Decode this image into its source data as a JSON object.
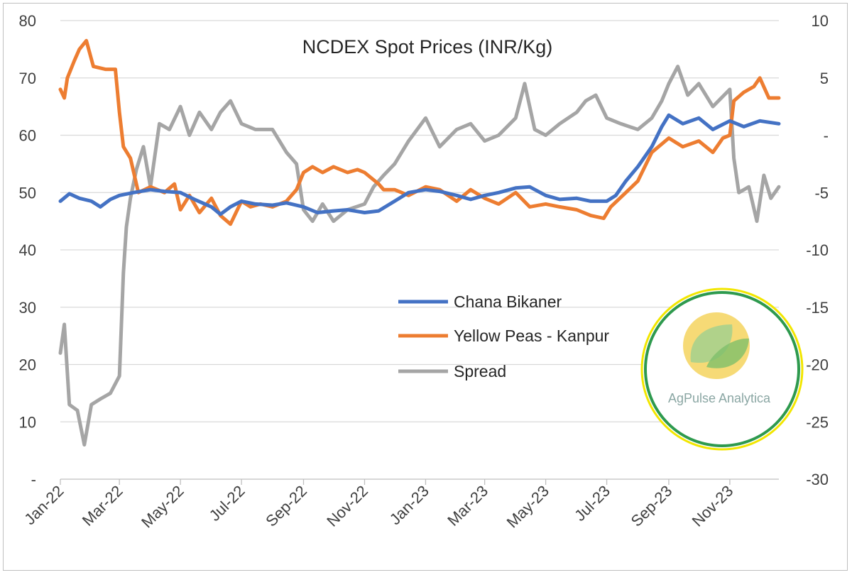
{
  "chart_data": {
    "type": "line",
    "title": "NCDEX Spot Prices (INR/Kg)",
    "xlabel": "",
    "ylabel": "",
    "x_ticks": [
      "Jan-22",
      "Mar-22",
      "May-22",
      "Jul-22",
      "Sep-22",
      "Nov-22",
      "Jan-23",
      "Mar-23",
      "May-23",
      "Jul-23",
      "Sep-23",
      "Nov-23"
    ],
    "x_range": [
      "2022-01-01",
      "2023-12-20"
    ],
    "ylim_left": [
      0,
      80
    ],
    "y_ticks_left": [
      "-",
      "10",
      "20",
      "30",
      "40",
      "50",
      "60",
      "70",
      "80"
    ],
    "ylim_right": [
      -30,
      10
    ],
    "y_ticks_right": [
      "-30",
      "-25",
      "-20",
      "-15",
      "-10",
      "-5",
      "-",
      "5",
      "10"
    ],
    "grid": true,
    "legend_position": "center-right",
    "series": [
      {
        "name": "Chana Bikaner",
        "axis": "left",
        "color": "#4472C4",
        "points": [
          [
            "2022-01-01",
            48.5
          ],
          [
            "2022-01-10",
            49.8
          ],
          [
            "2022-01-20",
            49.0
          ],
          [
            "2022-02-01",
            48.5
          ],
          [
            "2022-02-10",
            47.5
          ],
          [
            "2022-02-20",
            48.8
          ],
          [
            "2022-03-01",
            49.5
          ],
          [
            "2022-03-15",
            50.0
          ],
          [
            "2022-04-01",
            50.5
          ],
          [
            "2022-04-15",
            50.2
          ],
          [
            "2022-05-01",
            50.0
          ],
          [
            "2022-05-15",
            48.8
          ],
          [
            "2022-06-01",
            47.5
          ],
          [
            "2022-06-10",
            46.2
          ],
          [
            "2022-06-20",
            47.5
          ],
          [
            "2022-07-01",
            48.5
          ],
          [
            "2022-07-15",
            48.0
          ],
          [
            "2022-08-01",
            47.8
          ],
          [
            "2022-08-15",
            48.2
          ],
          [
            "2022-09-01",
            47.5
          ],
          [
            "2022-09-15",
            46.5
          ],
          [
            "2022-10-01",
            46.8
          ],
          [
            "2022-10-15",
            47.0
          ],
          [
            "2022-11-01",
            46.5
          ],
          [
            "2022-11-15",
            46.8
          ],
          [
            "2022-12-01",
            48.5
          ],
          [
            "2022-12-15",
            50.0
          ],
          [
            "2023-01-01",
            50.5
          ],
          [
            "2023-01-15",
            50.2
          ],
          [
            "2023-02-01",
            49.5
          ],
          [
            "2023-02-15",
            48.8
          ],
          [
            "2023-03-01",
            49.5
          ],
          [
            "2023-03-15",
            50.0
          ],
          [
            "2023-04-01",
            50.8
          ],
          [
            "2023-04-15",
            51.0
          ],
          [
            "2023-05-01",
            49.5
          ],
          [
            "2023-05-15",
            48.8
          ],
          [
            "2023-06-01",
            49.0
          ],
          [
            "2023-06-15",
            48.5
          ],
          [
            "2023-07-01",
            48.5
          ],
          [
            "2023-07-10",
            49.5
          ],
          [
            "2023-07-20",
            52.0
          ],
          [
            "2023-08-01",
            54.5
          ],
          [
            "2023-08-15",
            58.0
          ],
          [
            "2023-08-25",
            61.5
          ],
          [
            "2023-09-01",
            63.5
          ],
          [
            "2023-09-15",
            62.0
          ],
          [
            "2023-10-01",
            63.0
          ],
          [
            "2023-10-15",
            61.0
          ],
          [
            "2023-11-01",
            62.5
          ],
          [
            "2023-11-15",
            61.5
          ],
          [
            "2023-12-01",
            62.5
          ],
          [
            "2023-12-20",
            62.0
          ]
        ]
      },
      {
        "name": "Yellow Peas - Kanpur",
        "axis": "left",
        "color": "#ED7D31",
        "points": [
          [
            "2022-01-01",
            68.0
          ],
          [
            "2022-01-05",
            66.5
          ],
          [
            "2022-01-08",
            70.0
          ],
          [
            "2022-01-15",
            73.0
          ],
          [
            "2022-01-20",
            75.0
          ],
          [
            "2022-01-27",
            76.5
          ],
          [
            "2022-02-03",
            72.0
          ],
          [
            "2022-02-15",
            71.5
          ],
          [
            "2022-02-25",
            71.5
          ],
          [
            "2022-03-01",
            64.0
          ],
          [
            "2022-03-05",
            58.0
          ],
          [
            "2022-03-12",
            56.0
          ],
          [
            "2022-03-20",
            50.0
          ],
          [
            "2022-04-01",
            51.0
          ],
          [
            "2022-04-15",
            50.0
          ],
          [
            "2022-04-25",
            51.5
          ],
          [
            "2022-05-01",
            47.0
          ],
          [
            "2022-05-10",
            49.5
          ],
          [
            "2022-05-20",
            46.5
          ],
          [
            "2022-06-01",
            49.0
          ],
          [
            "2022-06-10",
            46.0
          ],
          [
            "2022-06-20",
            44.5
          ],
          [
            "2022-07-01",
            48.5
          ],
          [
            "2022-07-10",
            47.5
          ],
          [
            "2022-07-20",
            48.0
          ],
          [
            "2022-08-01",
            47.5
          ],
          [
            "2022-08-15",
            48.5
          ],
          [
            "2022-08-25",
            50.5
          ],
          [
            "2022-09-01",
            53.5
          ],
          [
            "2022-09-10",
            54.5
          ],
          [
            "2022-09-20",
            53.5
          ],
          [
            "2022-10-01",
            54.5
          ],
          [
            "2022-10-15",
            53.5
          ],
          [
            "2022-10-25",
            54.0
          ],
          [
            "2022-11-01",
            53.5
          ],
          [
            "2022-11-15",
            51.5
          ],
          [
            "2022-11-20",
            50.5
          ],
          [
            "2022-12-01",
            50.5
          ],
          [
            "2022-12-15",
            49.5
          ],
          [
            "2023-01-01",
            51.0
          ],
          [
            "2023-01-15",
            50.5
          ],
          [
            "2023-02-01",
            48.5
          ],
          [
            "2023-02-15",
            50.5
          ],
          [
            "2023-03-01",
            49.0
          ],
          [
            "2023-03-15",
            48.0
          ],
          [
            "2023-04-01",
            50.0
          ],
          [
            "2023-04-15",
            47.5
          ],
          [
            "2023-05-01",
            48.0
          ],
          [
            "2023-05-15",
            47.5
          ],
          [
            "2023-06-01",
            47.0
          ],
          [
            "2023-06-15",
            46.0
          ],
          [
            "2023-06-28",
            45.5
          ],
          [
            "2023-07-05",
            47.5
          ],
          [
            "2023-07-20",
            50.0
          ],
          [
            "2023-08-01",
            52.0
          ],
          [
            "2023-08-15",
            57.0
          ],
          [
            "2023-09-01",
            59.5
          ],
          [
            "2023-09-15",
            58.0
          ],
          [
            "2023-10-01",
            59.0
          ],
          [
            "2023-10-15",
            57.0
          ],
          [
            "2023-10-25",
            59.5
          ],
          [
            "2023-11-01",
            60.0
          ],
          [
            "2023-11-05",
            66.0
          ],
          [
            "2023-11-15",
            67.5
          ],
          [
            "2023-11-25",
            68.5
          ],
          [
            "2023-12-01",
            70.0
          ],
          [
            "2023-12-10",
            66.5
          ],
          [
            "2023-12-20",
            66.5
          ]
        ]
      },
      {
        "name": "Spread",
        "axis": "right",
        "color": "#A5A5A5",
        "points": [
          [
            "2022-01-01",
            -19.0
          ],
          [
            "2022-01-05",
            -16.5
          ],
          [
            "2022-01-10",
            -23.5
          ],
          [
            "2022-01-18",
            -24.0
          ],
          [
            "2022-01-25",
            -27.0
          ],
          [
            "2022-02-01",
            -23.5
          ],
          [
            "2022-02-10",
            -23.0
          ],
          [
            "2022-02-20",
            -22.5
          ],
          [
            "2022-03-01",
            -21.0
          ],
          [
            "2022-03-05",
            -12.0
          ],
          [
            "2022-03-08",
            -8.0
          ],
          [
            "2022-03-12",
            -5.5
          ],
          [
            "2022-03-18",
            -3.0
          ],
          [
            "2022-03-25",
            -1.0
          ],
          [
            "2022-04-01",
            -4.5
          ],
          [
            "2022-04-10",
            1.0
          ],
          [
            "2022-04-20",
            0.5
          ],
          [
            "2022-05-01",
            2.5
          ],
          [
            "2022-05-10",
            0.0
          ],
          [
            "2022-05-20",
            2.0
          ],
          [
            "2022-06-01",
            0.5
          ],
          [
            "2022-06-10",
            2.0
          ],
          [
            "2022-06-20",
            3.0
          ],
          [
            "2022-07-01",
            1.0
          ],
          [
            "2022-07-15",
            0.5
          ],
          [
            "2022-08-01",
            0.5
          ],
          [
            "2022-08-15",
            -1.5
          ],
          [
            "2022-08-25",
            -2.5
          ],
          [
            "2022-09-01",
            -6.5
          ],
          [
            "2022-09-10",
            -7.5
          ],
          [
            "2022-09-20",
            -6.0
          ],
          [
            "2022-10-01",
            -7.5
          ],
          [
            "2022-10-15",
            -6.5
          ],
          [
            "2022-11-01",
            -6.0
          ],
          [
            "2022-11-10",
            -4.5
          ],
          [
            "2022-11-20",
            -3.5
          ],
          [
            "2022-12-01",
            -2.5
          ],
          [
            "2022-12-15",
            -0.5
          ],
          [
            "2023-01-01",
            1.5
          ],
          [
            "2023-01-15",
            -1.0
          ],
          [
            "2023-02-01",
            0.5
          ],
          [
            "2023-02-15",
            1.0
          ],
          [
            "2023-03-01",
            -0.5
          ],
          [
            "2023-03-15",
            0.0
          ],
          [
            "2023-04-01",
            1.5
          ],
          [
            "2023-04-10",
            4.5
          ],
          [
            "2023-04-20",
            0.5
          ],
          [
            "2023-05-01",
            0.0
          ],
          [
            "2023-05-15",
            1.0
          ],
          [
            "2023-06-01",
            2.0
          ],
          [
            "2023-06-10",
            3.0
          ],
          [
            "2023-06-20",
            3.5
          ],
          [
            "2023-07-01",
            1.5
          ],
          [
            "2023-07-15",
            1.0
          ],
          [
            "2023-08-01",
            0.5
          ],
          [
            "2023-08-15",
            1.5
          ],
          [
            "2023-08-25",
            3.0
          ],
          [
            "2023-09-01",
            4.5
          ],
          [
            "2023-09-10",
            6.0
          ],
          [
            "2023-09-20",
            3.5
          ],
          [
            "2023-10-01",
            4.5
          ],
          [
            "2023-10-15",
            2.5
          ],
          [
            "2023-11-01",
            4.0
          ],
          [
            "2023-11-05",
            -2.0
          ],
          [
            "2023-11-10",
            -5.0
          ],
          [
            "2023-11-20",
            -4.5
          ],
          [
            "2023-11-28",
            -7.5
          ],
          [
            "2023-12-05",
            -3.5
          ],
          [
            "2023-12-12",
            -5.5
          ],
          [
            "2023-12-20",
            -4.5
          ]
        ]
      }
    ]
  },
  "logo": {
    "name": "AgPulse Analytica",
    "brand_text": "AgPulse Analytica",
    "colors": {
      "ring_outer": "#F2E600",
      "ring_inner": "#2E9A4E",
      "disc": "#F4D35E",
      "leaf": "#A8D08D",
      "text": "#8AA6A3"
    }
  }
}
